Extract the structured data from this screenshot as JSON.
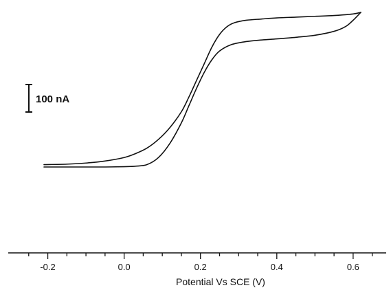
{
  "chart_data": {
    "type": "line",
    "xlabel": "Potential Vs SCE (V)",
    "xlim": [
      -0.25,
      0.67
    ],
    "x_ticks": [
      {
        "value": -0.2,
        "label": "-0.2"
      },
      {
        "value": 0.0,
        "label": "0.0"
      },
      {
        "value": 0.2,
        "label": "0.2"
      },
      {
        "value": 0.4,
        "label": "0.4"
      },
      {
        "value": 0.6,
        "label": "0.6"
      }
    ],
    "x_minor_step": 0.05,
    "ylim": [
      -0.5,
      10.5
    ],
    "grid": false,
    "legend": "none",
    "scale_bar": {
      "label": "100 nA",
      "value": 1.0
    },
    "series": [
      {
        "x": [
          -0.21,
          -0.15,
          -0.1,
          -0.05,
          0.0,
          0.03,
          0.06,
          0.09,
          0.12,
          0.15,
          0.17,
          0.19,
          0.21,
          0.23,
          0.25,
          0.28,
          0.32,
          0.36,
          0.4,
          0.45,
          0.5,
          0.55,
          0.58,
          0.6,
          0.62
        ],
        "y": [
          0.0,
          0.0,
          0.0,
          0.0,
          0.02,
          0.05,
          0.15,
          0.6,
          1.5,
          2.8,
          3.9,
          5.0,
          6.0,
          6.8,
          7.35,
          7.75,
          7.95,
          8.05,
          8.12,
          8.22,
          8.35,
          8.6,
          8.9,
          9.3,
          9.8
        ]
      },
      {
        "x": [
          0.62,
          0.6,
          0.55,
          0.5,
          0.45,
          0.4,
          0.36,
          0.32,
          0.29,
          0.27,
          0.25,
          0.23,
          0.21,
          0.19,
          0.17,
          0.15,
          0.12,
          0.09,
          0.06,
          0.03,
          0.0,
          -0.05,
          -0.1,
          -0.15,
          -0.21
        ],
        "y": [
          9.8,
          9.7,
          9.6,
          9.55,
          9.5,
          9.45,
          9.38,
          9.3,
          9.15,
          8.9,
          8.4,
          7.6,
          6.55,
          5.5,
          4.45,
          3.5,
          2.5,
          1.75,
          1.2,
          0.85,
          0.6,
          0.38,
          0.25,
          0.18,
          0.15
        ]
      }
    ]
  }
}
